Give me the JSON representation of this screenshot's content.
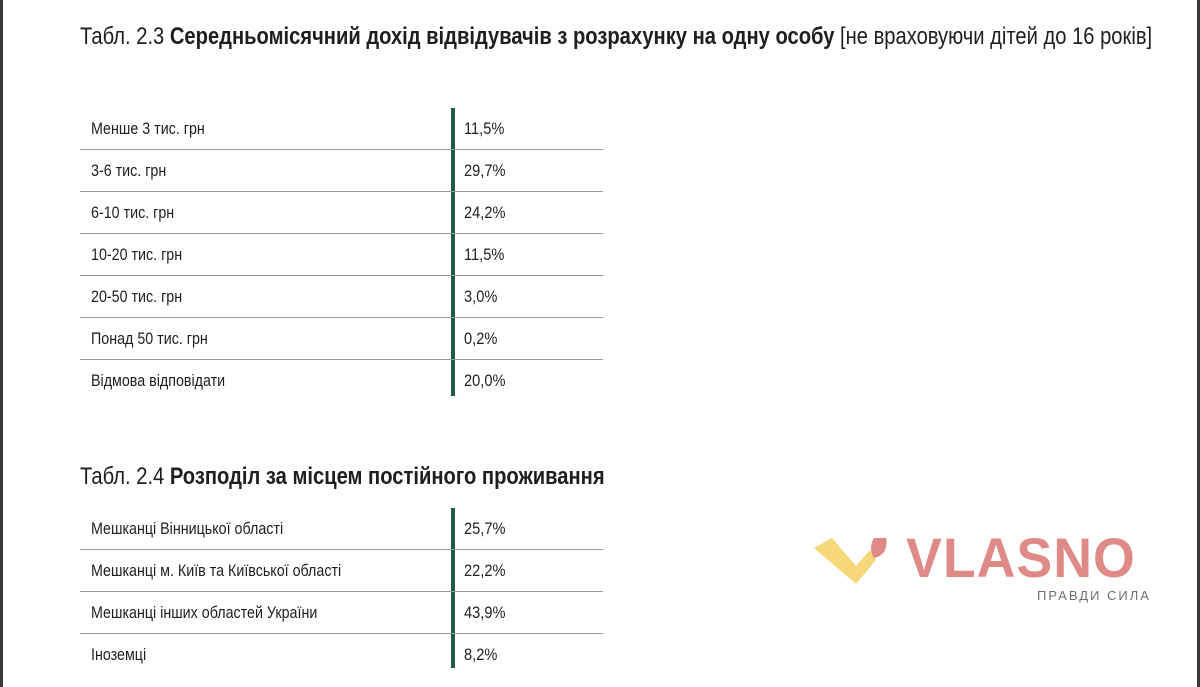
{
  "table_1": {
    "prefix": "Табл. 2.3",
    "title": "Середньомісячний дохід відвідувачів з розрахунку на одну особу",
    "suffix": "[не враховуючи дітей до 16 років]",
    "rows": [
      {
        "label": "Менше 3 тис. грн",
        "value": "11,5%"
      },
      {
        "label": "3-6 тис. грн",
        "value": "29,7%"
      },
      {
        "label": "6-10 тис. грн",
        "value": "24,2%"
      },
      {
        "label": "10-20 тис. грн",
        "value": "11,5%"
      },
      {
        "label": "20-50 тис. грн",
        "value": "3,0%"
      },
      {
        "label": "Понад 50 тис. грн",
        "value": "0,2%"
      },
      {
        "label": "Відмова відповідати",
        "value": "20,0%"
      }
    ]
  },
  "table_2": {
    "prefix": "Табл. 2.4",
    "title": "Розподіл за місцем постійного проживання",
    "rows": [
      {
        "label": "Мешканці Вінницької області",
        "value": "25,7%"
      },
      {
        "label": "Мешканці м. Київ та Київської області",
        "value": "22,2%"
      },
      {
        "label": "Мешканці  інших областей України",
        "value": "43,9%"
      },
      {
        "label": "Іноземці",
        "value": "8,2%"
      }
    ]
  },
  "logo": {
    "wordmark": "VLASNO",
    "tagline": "ПРАВДИ СИЛА",
    "colors": {
      "wordmark": "#e08a87",
      "mark_yellow": "#f6d77a",
      "mark_pink": "#e08a87",
      "accent_line": "#1f5a4a"
    }
  }
}
